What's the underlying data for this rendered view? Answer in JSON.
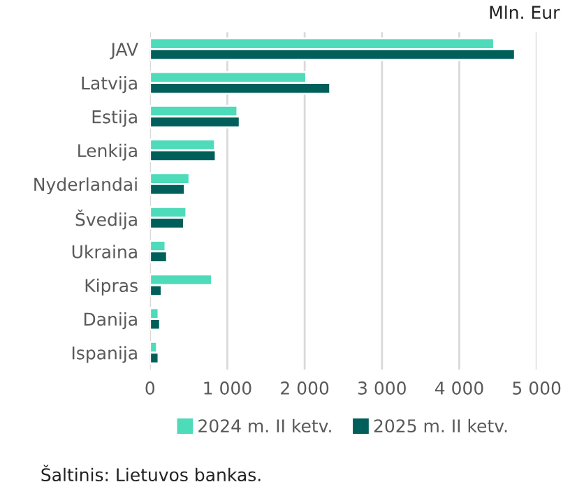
{
  "chart_data": {
    "type": "bar",
    "orientation": "horizontal",
    "categories": [
      "JAV",
      "Latvija",
      "Estija",
      "Lenkija",
      "Nyderlandai",
      "Švedija",
      "Ukraina",
      "Kipras",
      "Danija",
      "Ispanija"
    ],
    "series": [
      {
        "name": "2024 m. II ketv.",
        "color": "#4ddbb9",
        "values": [
          4450,
          2020,
          1130,
          840,
          510,
          470,
          200,
          800,
          110,
          90
        ]
      },
      {
        "name": "2025 m. II ketv.",
        "color": "#005f5a",
        "values": [
          4720,
          2330,
          1160,
          850,
          450,
          440,
          220,
          150,
          130,
          110
        ]
      }
    ],
    "xlabel": "Mln. Eur",
    "xlim": [
      0,
      5000
    ],
    "xticks": [
      0,
      {
        "value": 1000,
        "label": "1 000"
      },
      {
        "value": 2000,
        "label": "2 000"
      },
      {
        "value": 3000,
        "label": "3 000"
      },
      {
        "value": 4000,
        "label": "4 000"
      },
      {
        "value": 5000,
        "label": "5 000"
      }
    ],
    "grid": "x",
    "legend": "bottom",
    "annotations": [
      "Šaltinis: Lietuvos bankas."
    ]
  }
}
